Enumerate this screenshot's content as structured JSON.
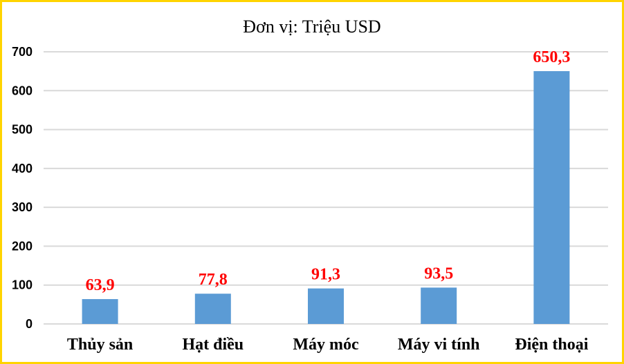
{
  "chart_data": {
    "type": "bar",
    "title": "Đơn vị: Triệu USD",
    "categories": [
      "Thủy sản",
      "Hạt điều",
      "Máy móc",
      "Máy vi tính",
      "Điện thoại"
    ],
    "values": [
      63.9,
      77.8,
      91.3,
      93.5,
      650.3
    ],
    "data_labels": [
      "63,9",
      "77,8",
      "91,3",
      "93,5",
      "650,3"
    ],
    "y_ticks": [
      "0",
      "100",
      "200",
      "300",
      "400",
      "500",
      "600",
      "700"
    ],
    "ylim": [
      0,
      700
    ],
    "grid": true,
    "legend": "none",
    "bar_color": "#5b9bd5",
    "label_color": "#ff0000",
    "grid_color": "#d9d9d9",
    "frame_color": "#ffd400"
  }
}
